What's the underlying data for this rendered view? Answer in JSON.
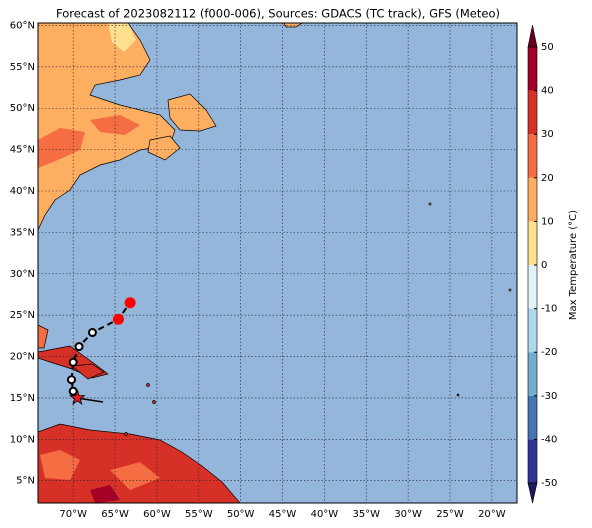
{
  "map": {
    "title": "Forecast of 2023082112 (f000-006), Sources: GDACS (TC track), GFS (Meteo)",
    "xlim": [
      -74.2,
      -17
    ],
    "ylim": [
      2.3,
      60.3
    ],
    "xticks": [
      {
        "value": -70,
        "label": "70°W"
      },
      {
        "value": -65,
        "label": "65°W"
      },
      {
        "value": -60,
        "label": "60°W"
      },
      {
        "value": -55,
        "label": "55°W"
      },
      {
        "value": -50,
        "label": "50°W"
      },
      {
        "value": -45,
        "label": "45°W"
      },
      {
        "value": -40,
        "label": "40°W"
      },
      {
        "value": -35,
        "label": "35°W"
      },
      {
        "value": -30,
        "label": "30°W"
      },
      {
        "value": -25,
        "label": "25°W"
      },
      {
        "value": -20,
        "label": "20°W"
      }
    ],
    "yticks": [
      {
        "value": 5,
        "label": "5°N"
      },
      {
        "value": 10,
        "label": "10°N"
      },
      {
        "value": 15,
        "label": "15°N"
      },
      {
        "value": 20,
        "label": "20°N"
      },
      {
        "value": 25,
        "label": "25°N"
      },
      {
        "value": 30,
        "label": "30°N"
      },
      {
        "value": 35,
        "label": "35°N"
      },
      {
        "value": 40,
        "label": "40°N"
      },
      {
        "value": 45,
        "label": "45°N"
      },
      {
        "value": 50,
        "label": "50°N"
      },
      {
        "value": 55,
        "label": "55°N"
      },
      {
        "value": 60,
        "label": "60°N"
      }
    ],
    "grid": true,
    "track": {
      "lat": [
        15.0,
        15.8,
        17.2,
        19.3,
        21.2,
        22.9,
        24.5,
        26.5
      ],
      "lon": [
        -69.5,
        -70.0,
        -70.2,
        -70.0,
        -69.3,
        -67.7,
        -64.6,
        -63.2
      ]
    },
    "colorbar": {
      "label": "Max Temperature (°C)",
      "ticks": [
        -50,
        -40,
        -30,
        -20,
        -10,
        0,
        10,
        20,
        30,
        40,
        50
      ],
      "colors": [
        "#313695",
        "#4575b4",
        "#74add1",
        "#abd9e9",
        "#e0f3f8",
        "#fee090",
        "#fdae61",
        "#f46d43",
        "#d73027",
        "#a50026"
      ]
    }
  }
}
